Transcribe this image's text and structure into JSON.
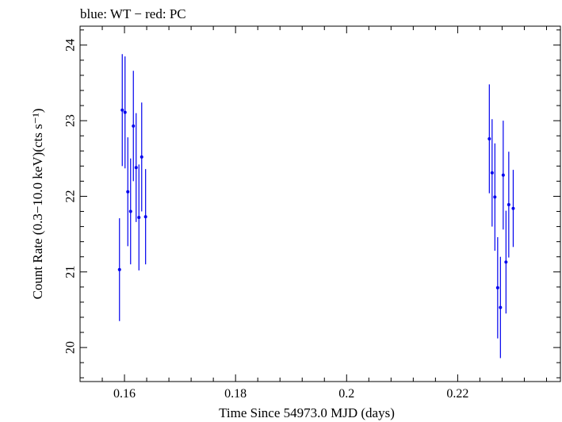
{
  "chart_data": {
    "type": "scatter",
    "title": "blue: WT − red: PC",
    "xlabel": "Time Since 54973.0 MJD (days)",
    "ylabel": "Count Rate (0.3−10.0 keV)(cts s⁻¹)",
    "xlim": [
      0.152,
      0.2385
    ],
    "ylim": [
      19.55,
      24.25
    ],
    "x_ticks": [
      0.16,
      0.18,
      0.2,
      0.22
    ],
    "x_tick_labels": [
      "0.16",
      "0.18",
      "0.2",
      "0.22"
    ],
    "y_ticks": [
      20,
      21,
      22,
      23,
      24
    ],
    "y_tick_labels": [
      "20",
      "21",
      "22",
      "23",
      "24"
    ],
    "grid": false,
    "color": "#0000ee",
    "series": [
      {
        "points": [
          {
            "x": 0.1591,
            "y": 21.03,
            "yerr": 0.68
          },
          {
            "x": 0.1596,
            "y": 23.14,
            "yerr": 0.74
          },
          {
            "x": 0.1601,
            "y": 23.11,
            "yerr": 0.74
          },
          {
            "x": 0.1606,
            "y": 22.06,
            "yerr": 0.72
          },
          {
            "x": 0.1611,
            "y": 21.8,
            "yerr": 0.7
          },
          {
            "x": 0.1616,
            "y": 22.93,
            "yerr": 0.73
          },
          {
            "x": 0.1621,
            "y": 22.38,
            "yerr": 0.72
          },
          {
            "x": 0.1626,
            "y": 21.72,
            "yerr": 0.7
          },
          {
            "x": 0.1631,
            "y": 22.52,
            "yerr": 0.72
          },
          {
            "x": 0.1638,
            "y": 21.73,
            "yerr": 0.63
          },
          {
            "x": 0.2257,
            "y": 22.76,
            "yerr": 0.72
          },
          {
            "x": 0.2262,
            "y": 22.31,
            "yerr": 0.71
          },
          {
            "x": 0.2267,
            "y": 21.99,
            "yerr": 0.71
          },
          {
            "x": 0.2272,
            "y": 20.79,
            "yerr": 0.67
          },
          {
            "x": 0.2277,
            "y": 20.53,
            "yerr": 0.67
          },
          {
            "x": 0.2282,
            "y": 22.28,
            "yerr": 0.72
          },
          {
            "x": 0.2287,
            "y": 21.13,
            "yerr": 0.68
          },
          {
            "x": 0.2292,
            "y": 21.89,
            "yerr": 0.7
          },
          {
            "x": 0.23,
            "y": 21.84,
            "yerr": 0.51
          }
        ]
      }
    ]
  }
}
